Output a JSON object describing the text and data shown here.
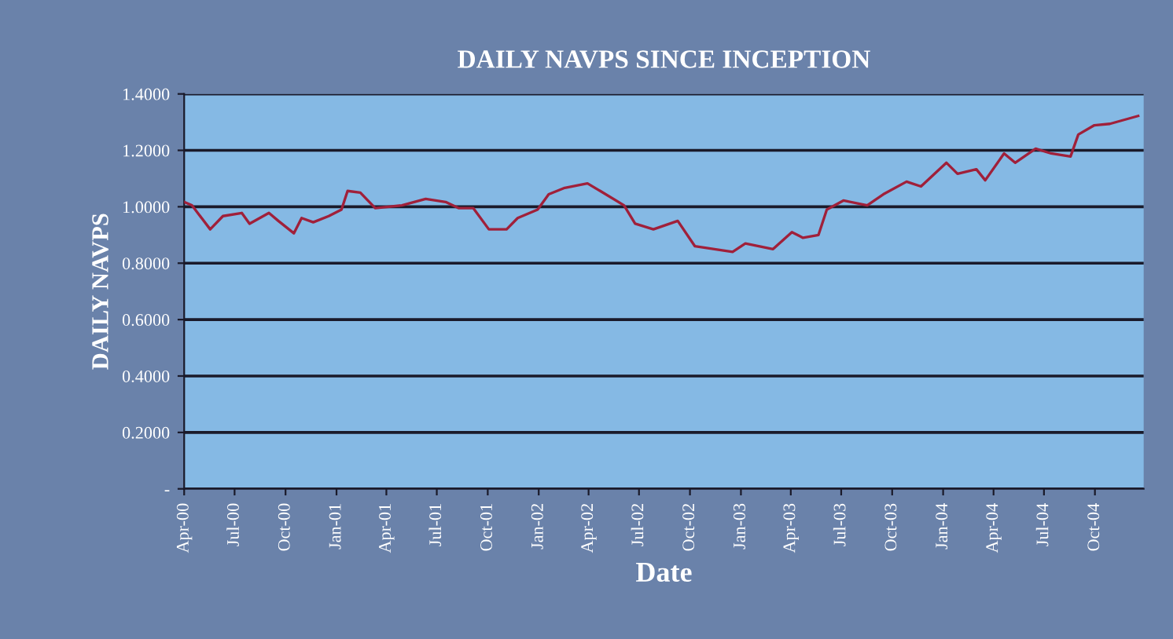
{
  "chart_data": {
    "type": "line",
    "title": "DAILY NAVPS SINCE INCEPTION",
    "xlabel": "Date",
    "ylabel": "DAILY NAVPS",
    "x": [
      "2000-04-01",
      "2000-04-15",
      "2000-05-18",
      "2000-06-10",
      "2000-07-14",
      "2000-07-28",
      "2000-09-01",
      "2000-09-18",
      "2000-10-16",
      "2000-10-30",
      "2000-11-20",
      "2000-12-18",
      "2001-01-10",
      "2001-01-21",
      "2001-02-13",
      "2001-03-12",
      "2001-04-29",
      "2001-06-11",
      "2001-07-17",
      "2001-08-10",
      "2001-09-05",
      "2001-10-03",
      "2001-11-04",
      "2001-11-24",
      "2001-12-30",
      "2002-01-19",
      "2002-02-17",
      "2002-03-30",
      "2002-04-22",
      "2002-06-04",
      "2002-06-24",
      "2002-07-27",
      "2002-09-09",
      "2002-10-10",
      "2002-12-17",
      "2003-01-09",
      "2003-02-28",
      "2003-04-03",
      "2003-04-23",
      "2003-05-21",
      "2003-06-05",
      "2003-07-05",
      "2003-08-17",
      "2003-09-15",
      "2003-10-27",
      "2003-11-22",
      "2004-01-07",
      "2004-01-27",
      "2004-03-01",
      "2004-03-17",
      "2004-04-20",
      "2004-05-10",
      "2004-06-16",
      "2004-07-14",
      "2004-08-18",
      "2004-09-01",
      "2004-09-30",
      "2004-10-28",
      "2004-12-18"
    ],
    "series": [
      {
        "color": "#a0203a",
        "values": [
          1.017,
          1.005,
          0.92,
          0.967,
          0.978,
          0.94,
          0.978,
          0.95,
          0.906,
          0.96,
          0.945,
          0.967,
          0.99,
          1.056,
          1.05,
          0.995,
          1.005,
          1.028,
          1.017,
          0.995,
          0.995,
          0.92,
          0.92,
          0.96,
          0.99,
          1.044,
          1.067,
          1.083,
          1.056,
          1.005,
          0.94,
          0.92,
          0.95,
          0.86,
          0.84,
          0.87,
          0.85,
          0.91,
          0.89,
          0.9,
          0.99,
          1.022,
          1.005,
          1.044,
          1.089,
          1.072,
          1.156,
          1.117,
          1.133,
          1.094,
          1.189,
          1.156,
          1.206,
          1.189,
          1.178,
          1.256,
          1.289,
          1.294,
          1.322
        ]
      }
    ],
    "xlim": [
      "2000-04-01",
      "2004-12-28"
    ],
    "xticks": [
      {
        "value": "2000-04-01",
        "label": "Apr-00"
      },
      {
        "value": "2000-07-01",
        "label": "Jul-00"
      },
      {
        "value": "2000-10-01",
        "label": "Oct-00"
      },
      {
        "value": "2001-01-01",
        "label": "Jan-01"
      },
      {
        "value": "2001-04-01",
        "label": "Apr-01"
      },
      {
        "value": "2001-07-01",
        "label": "Jul-01"
      },
      {
        "value": "2001-10-01",
        "label": "Oct-01"
      },
      {
        "value": "2002-01-01",
        "label": "Jan-02"
      },
      {
        "value": "2002-04-01",
        "label": "Apr-02"
      },
      {
        "value": "2002-07-01",
        "label": "Jul-02"
      },
      {
        "value": "2002-10-01",
        "label": "Oct-02"
      },
      {
        "value": "2003-01-01",
        "label": "Jan-03"
      },
      {
        "value": "2003-04-01",
        "label": "Apr-03"
      },
      {
        "value": "2003-07-01",
        "label": "Jul-03"
      },
      {
        "value": "2003-10-01",
        "label": "Oct-03"
      },
      {
        "value": "2004-01-01",
        "label": "Jan-04"
      },
      {
        "value": "2004-04-01",
        "label": "Apr-04"
      },
      {
        "value": "2004-07-01",
        "label": "Jul-04"
      },
      {
        "value": "2004-10-01",
        "label": "Oct-04"
      }
    ],
    "ylim": [
      0,
      1.4
    ],
    "yticks": [
      {
        "value": 0,
        "label": "-"
      },
      {
        "value": 0.2,
        "label": "0.2000"
      },
      {
        "value": 0.4,
        "label": "0.4000"
      },
      {
        "value": 0.6,
        "label": "0.6000"
      },
      {
        "value": 0.8,
        "label": "0.8000"
      },
      {
        "value": 1.0,
        "label": "1.0000"
      },
      {
        "value": 1.2,
        "label": "1.2000"
      },
      {
        "value": 1.4,
        "label": "1.4000"
      }
    ],
    "grid": "y",
    "marker": "none",
    "line_style": "solid"
  }
}
